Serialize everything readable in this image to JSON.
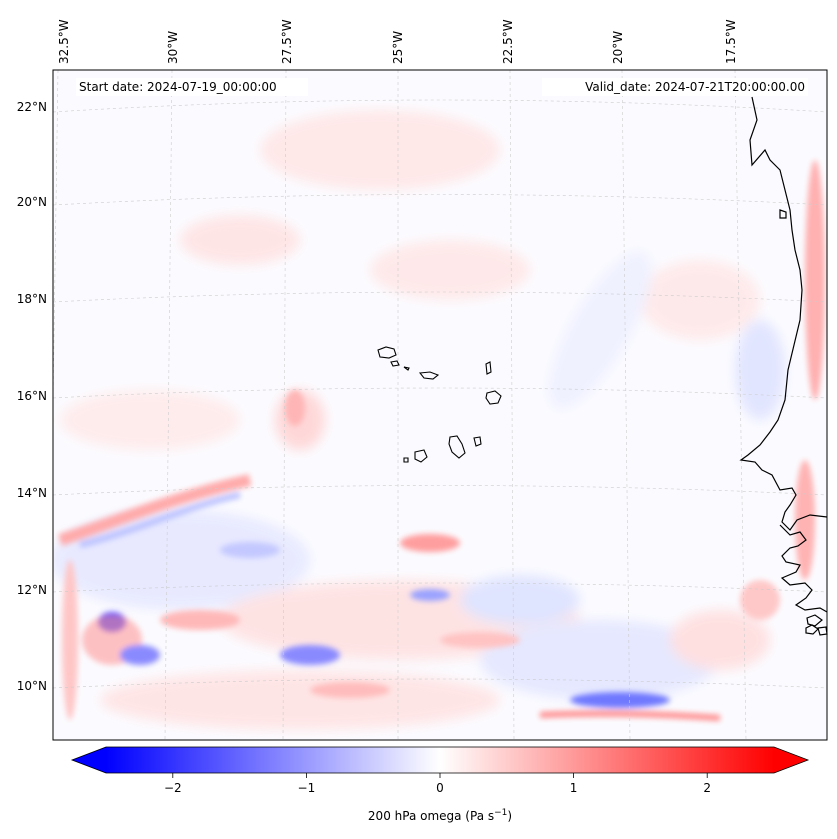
{
  "map": {
    "start_label": "Start date: 2024-07-19_00:00:00",
    "valid_label": "Valid_date: 2024-07-21T20:00:00.00",
    "lon_labels": [
      "32.5°W",
      "30°W",
      "27.5°W",
      "25°W",
      "22.5°W",
      "20°W",
      "17.5°W"
    ],
    "lat_labels": [
      "22°N",
      "20°N",
      "18°N",
      "16°N",
      "14°N",
      "12°N",
      "10°N"
    ],
    "colors": {
      "negative": "#0000ff",
      "neutral": "#ffffff",
      "positive": "#ff0000",
      "coastline": "#000000",
      "gridline": "#c8c8c8"
    }
  },
  "colorbar": {
    "label_main": "200 hPa omega (Pa s",
    "label_sup": "−1",
    "label_end": ")",
    "ticks": [
      {
        "value": -2,
        "label": "−2"
      },
      {
        "value": -1,
        "label": "−1"
      },
      {
        "value": 0,
        "label": "0"
      },
      {
        "value": 1,
        "label": "1"
      },
      {
        "value": 2,
        "label": "2"
      }
    ],
    "range": [
      -2.5,
      2.5
    ],
    "extend": "both"
  }
}
